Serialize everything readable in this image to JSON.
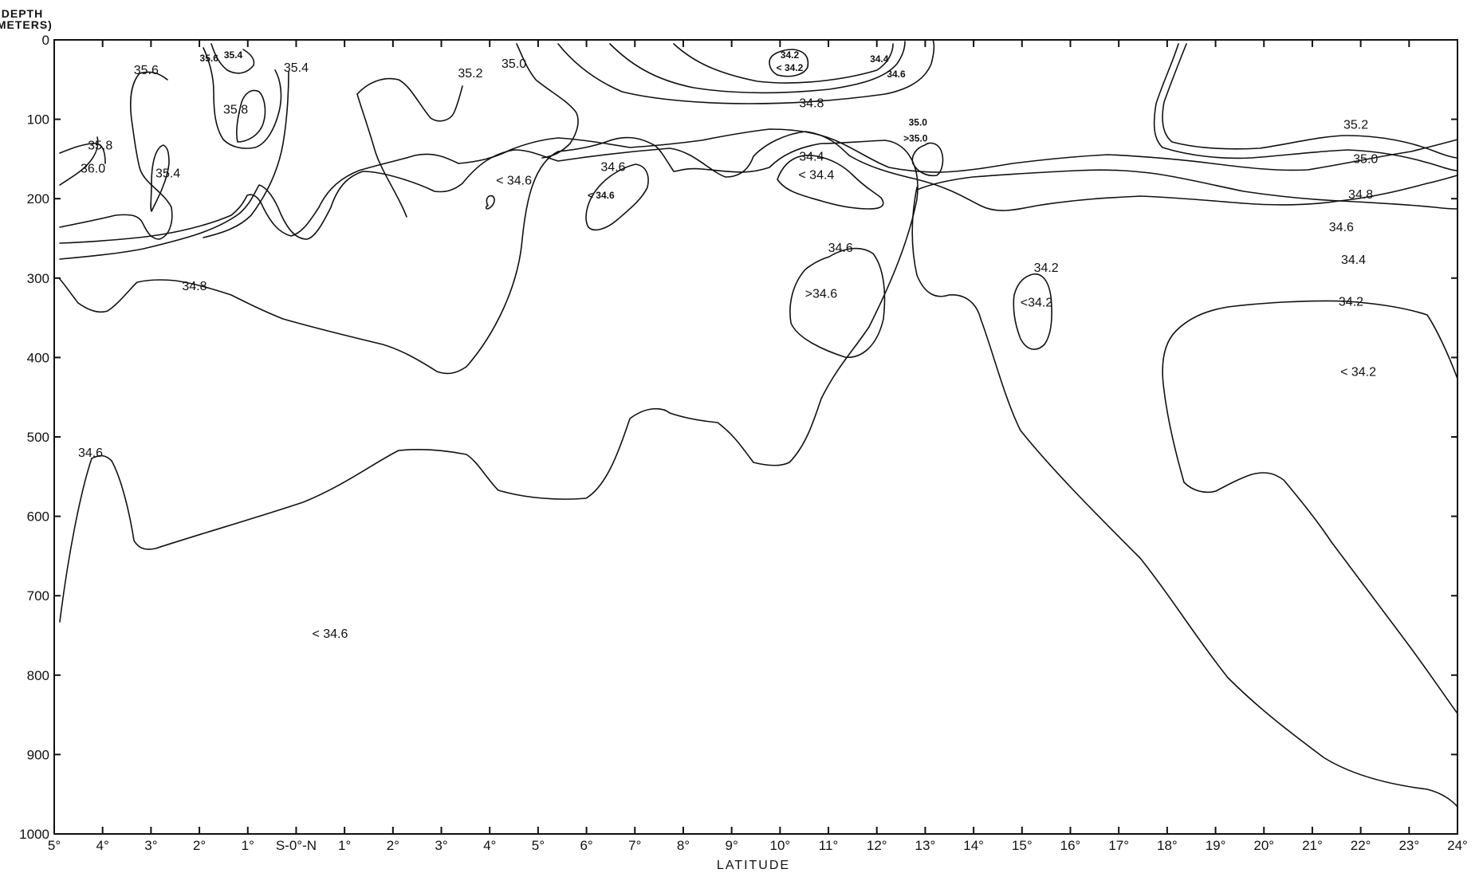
{
  "chart_data": {
    "type": "contour",
    "ylabel_line1": "DEPTH",
    "ylabel_line2": "(METERS)",
    "xlabel": "LATITUDE",
    "ylim": [
      0,
      1000
    ],
    "y_ticks": [
      "0",
      "100",
      "200",
      "300",
      "400",
      "500",
      "600",
      "700",
      "800",
      "900",
      "1000"
    ],
    "x_ticks": [
      "5°",
      "4°",
      "3°",
      "2°",
      "1°",
      "S-0°-N",
      "1°",
      "2°",
      "3°",
      "4°",
      "5°",
      "6°",
      "7°",
      "8°",
      "9°",
      "10°",
      "11°",
      "12°",
      "13°",
      "14°",
      "15°",
      "16°",
      "17°",
      "18°",
      "19°",
      "20°",
      "21°",
      "22°",
      "23°",
      "24°"
    ],
    "x_range_signed_lat": [
      -5,
      24
    ],
    "contour_levels": [
      34.2,
      34.4,
      34.6,
      34.8,
      35.0,
      35.2,
      35.4,
      35.6,
      35.8,
      36.0
    ],
    "contour_labels": [
      {
        "text": "35.6",
        "lat": -3.1,
        "depth": 38
      },
      {
        "text": "35.6",
        "lat": -1.8,
        "depth": 22,
        "small": true
      },
      {
        "text": "35.4",
        "lat": -1.3,
        "depth": 18,
        "small": true
      },
      {
        "text": "35.4",
        "lat": 0.0,
        "depth": 35
      },
      {
        "text": "35.8",
        "lat": -1.25,
        "depth": 88
      },
      {
        "text": "35.8",
        "lat": -4.05,
        "depth": 133
      },
      {
        "text": "36.0",
        "lat": -4.2,
        "depth": 162
      },
      {
        "text": "35.4",
        "lat": -2.65,
        "depth": 168
      },
      {
        "text": "35.2",
        "lat": 3.6,
        "depth": 42
      },
      {
        "text": "35.0",
        "lat": 4.5,
        "depth": 30
      },
      {
        "text": "34.2",
        "lat": 10.2,
        "depth": 18,
        "small": true
      },
      {
        "text": "< 34.2",
        "lat": 10.2,
        "depth": 34,
        "small": true
      },
      {
        "text": "34.4",
        "lat": 12.05,
        "depth": 23,
        "small": true
      },
      {
        "text": "34.6",
        "lat": 12.4,
        "depth": 42,
        "small": true
      },
      {
        "text": "34.8",
        "lat": 10.65,
        "depth": 80
      },
      {
        "text": "35.0",
        "lat": 12.85,
        "depth": 103,
        "small": true
      },
      {
        "text": ">35.0",
        "lat": 12.8,
        "depth": 123,
        "small": true
      },
      {
        "text": "35.2",
        "lat": 21.9,
        "depth": 107
      },
      {
        "text": "34.4",
        "lat": 10.65,
        "depth": 147
      },
      {
        "text": "< 34.4",
        "lat": 10.75,
        "depth": 170
      },
      {
        "text": "< 34.6",
        "lat": 4.5,
        "depth": 177
      },
      {
        "text": "34.6",
        "lat": 6.55,
        "depth": 160
      },
      {
        "text": "< 34.6",
        "lat": 6.3,
        "depth": 195,
        "small": true
      },
      {
        "text": "35.0",
        "lat": 22.1,
        "depth": 150
      },
      {
        "text": "34.8",
        "lat": 22.0,
        "depth": 195
      },
      {
        "text": "34.6",
        "lat": 21.6,
        "depth": 236
      },
      {
        "text": "34.4",
        "lat": 21.85,
        "depth": 277
      },
      {
        "text": "34.6",
        "lat": 11.25,
        "depth": 262
      },
      {
        "text": ">34.6",
        "lat": 10.85,
        "depth": 320
      },
      {
        "text": "34.2",
        "lat": 15.5,
        "depth": 287
      },
      {
        "text": "<34.2",
        "lat": 15.3,
        "depth": 331
      },
      {
        "text": "34.2",
        "lat": 21.8,
        "depth": 330
      },
      {
        "text": "< 34.2",
        "lat": 21.95,
        "depth": 418
      },
      {
        "text": "34.8",
        "lat": -2.1,
        "depth": 310
      },
      {
        "text": "34.6",
        "lat": -4.25,
        "depth": 520
      },
      {
        "text": "< 34.6",
        "lat": 0.7,
        "depth": 748
      }
    ]
  }
}
